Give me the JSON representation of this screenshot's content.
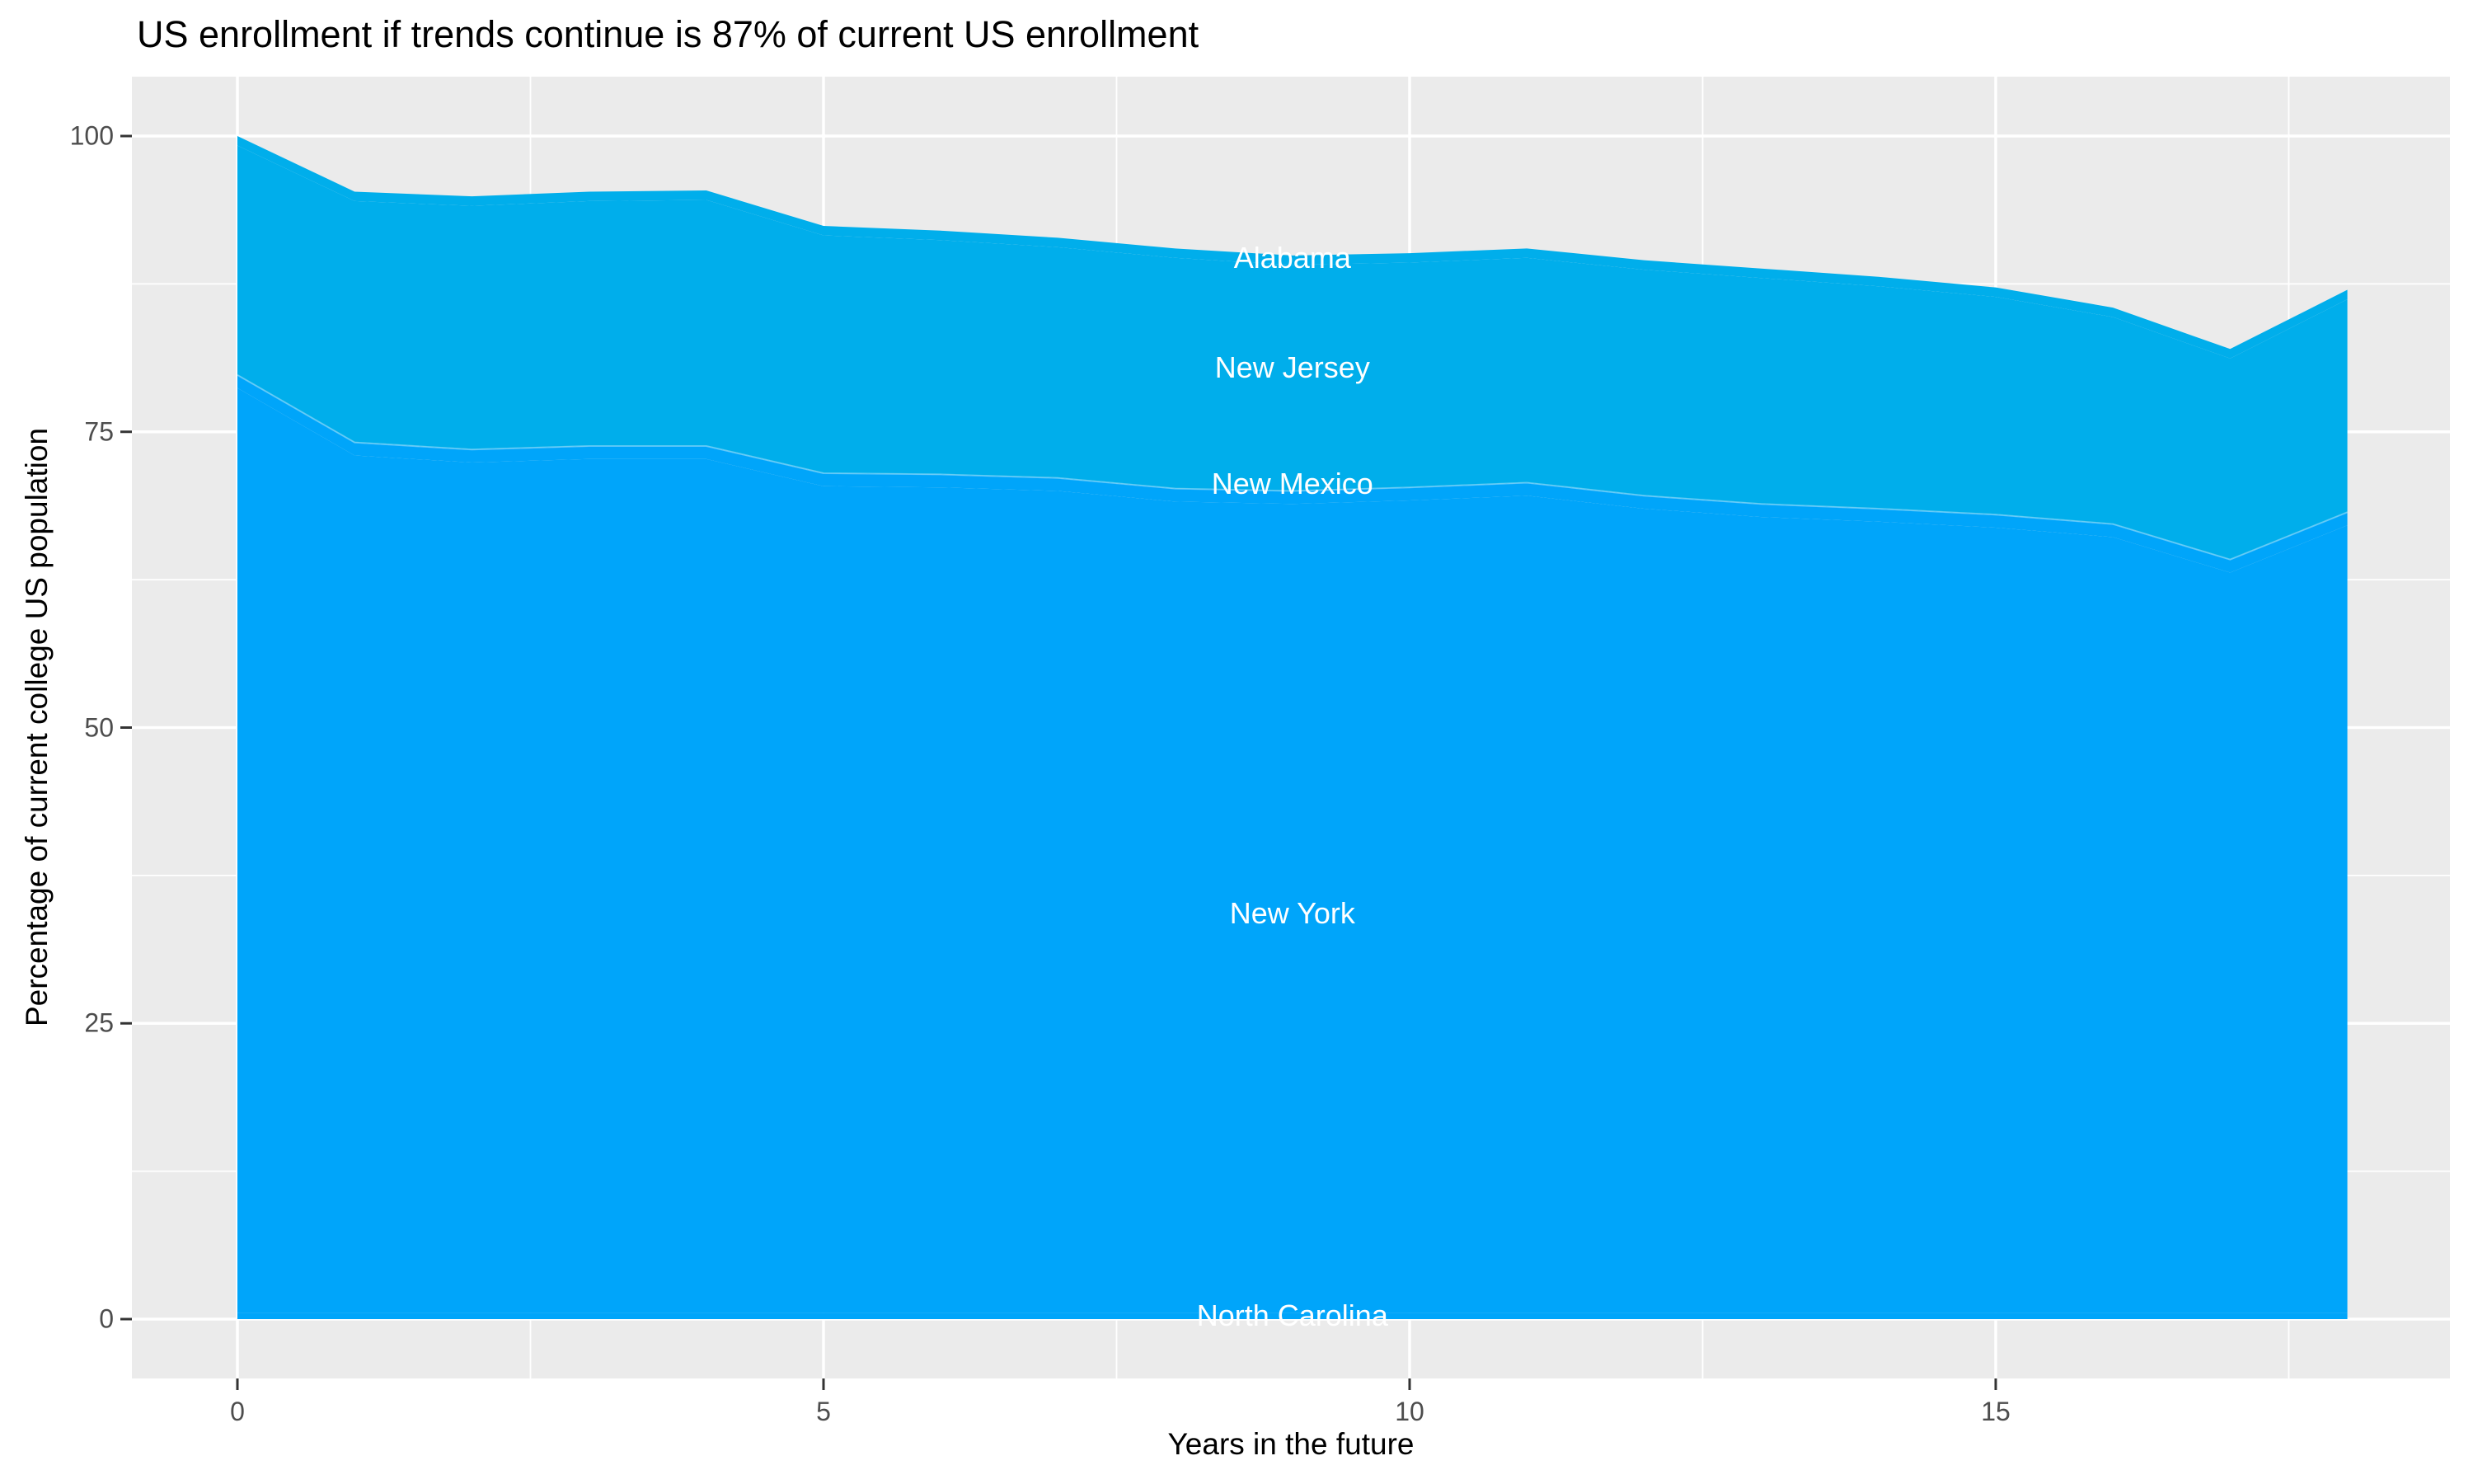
{
  "chart": {
    "title": "US enrollment if trends continue is 87% of current US enrollment",
    "x_axis": {
      "label": "Years in the future",
      "tick_labels": [
        "0",
        "5",
        "10",
        "15"
      ],
      "tick_values": [
        0,
        5,
        10,
        15
      ],
      "minor_tick_values": [
        2.5,
        7.5,
        12.5,
        17.5
      ]
    },
    "y_axis": {
      "label": "Percentage of current college US population",
      "tick_labels": [
        "0",
        "25",
        "50",
        "75",
        "100"
      ],
      "tick_values": [
        0,
        25,
        50,
        75,
        100
      ],
      "minor_tick_values": [
        12.5,
        37.5,
        62.5,
        87.5
      ]
    },
    "colors": {
      "outer_background": "#FFFFFF",
      "panel_background": "#EBEBEB",
      "gridline": "#FFFFFF",
      "tick_mark": "#333333",
      "tick_text": "#4D4D4D",
      "title_text": "#000000",
      "axis_title_text": "#000000",
      "state_label_text": "#FFFFFF",
      "lower_band_blue": "#00A5FA",
      "upper_band_blue": "#00AEEB",
      "band_seam": "rgba(255,255,255,0.35)"
    }
  },
  "chart_data": {
    "type": "area",
    "stacked": true,
    "title": "US enrollment if trends continue is 87% of current US enrollment",
    "xlabel": "Years in the future",
    "ylabel": "Percentage of current college US population",
    "x": [
      0,
      1,
      2,
      3,
      4,
      5,
      6,
      7,
      8,
      9,
      10,
      11,
      12,
      13,
      14,
      15,
      16,
      17,
      18
    ],
    "xlim": [
      0,
      18
    ],
    "ylim": [
      0,
      100
    ],
    "grid": true,
    "legend_position": "none",
    "final_total_pct_of_current": 87,
    "stack_totals": [
      100,
      95.3,
      94.9,
      95.3,
      95.4,
      92.4,
      92.0,
      91.4,
      90.5,
      89.9,
      90.1,
      90.5,
      89.5,
      88.8,
      88.1,
      87.2,
      85.5,
      82.0,
      87.0
    ],
    "upper_lower_boundary": [
      79.8,
      74.1,
      73.5,
      73.8,
      73.8,
      71.5,
      71.4,
      71.1,
      70.2,
      70.0,
      70.3,
      70.7,
      69.6,
      68.9,
      68.5,
      68.0,
      67.2,
      64.2,
      68.2
    ],
    "series": [
      {
        "name": "North Carolina",
        "color": "#00A5FA",
        "label_pos": {
          "x": 9,
          "y": 0.3
        },
        "values": [
          0.5,
          0.5,
          0.5,
          0.5,
          0.5,
          0.5,
          0.5,
          0.5,
          0.5,
          0.5,
          0.5,
          0.5,
          0.5,
          0.5,
          0.5,
          0.5,
          0.5,
          0.5,
          0.5
        ]
      },
      {
        "name": "New York",
        "color": "#00A5FA",
        "label_pos": {
          "x": 9,
          "y": 34.3
        },
        "values": [
          78.2,
          72.5,
          71.9,
          72.2,
          72.2,
          69.9,
          69.8,
          69.5,
          68.6,
          68.4,
          68.7,
          69.1,
          68.0,
          67.3,
          66.9,
          66.4,
          65.6,
          62.6,
          66.6
        ]
      },
      {
        "name": "New Mexico",
        "color": "#00A5FA",
        "label_pos": {
          "x": 9,
          "y": 70.6
        },
        "values": [
          1.1,
          1.1,
          1.1,
          1.1,
          1.1,
          1.1,
          1.1,
          1.1,
          1.1,
          1.1,
          1.1,
          1.1,
          1.1,
          1.1,
          1.1,
          1.1,
          1.1,
          1.1,
          1.1
        ]
      },
      {
        "name": "New Jersey",
        "color": "#00AEEB",
        "label_pos": {
          "x": 9,
          "y": 80.4
        },
        "values": [
          19.4,
          20.4,
          20.6,
          20.7,
          20.8,
          20.1,
          19.8,
          19.5,
          19.5,
          19.1,
          19.0,
          19.0,
          19.1,
          19.1,
          18.8,
          18.4,
          17.5,
          17.0,
          18.0
        ]
      },
      {
        "name": "Alabama",
        "color": "#00AEEB",
        "label_pos": {
          "x": 9,
          "y": 89.7
        },
        "values": [
          0.8,
          0.8,
          0.8,
          0.8,
          0.8,
          0.8,
          0.8,
          0.8,
          0.8,
          0.8,
          0.8,
          0.8,
          0.8,
          0.8,
          0.8,
          0.8,
          0.8,
          0.8,
          0.8
        ]
      }
    ],
    "seam_after_series_index": 2
  }
}
